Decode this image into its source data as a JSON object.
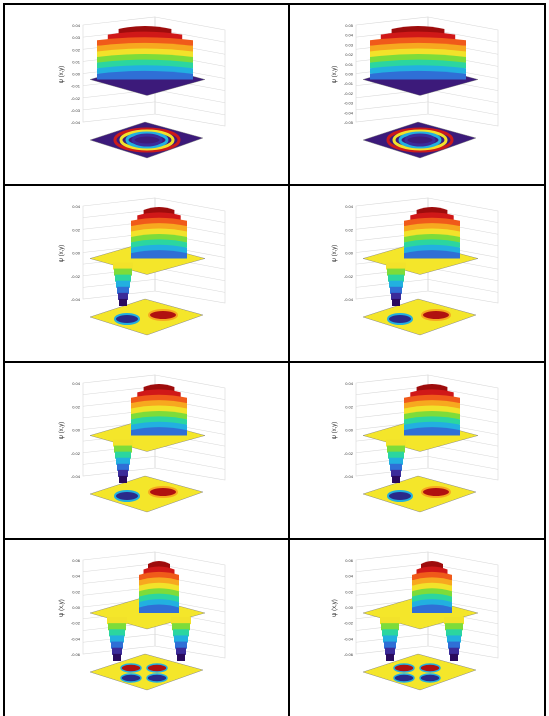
{
  "panels": [
    {
      "id": "p1",
      "ylabel": "ψ (x,y)",
      "ticks": [
        "0.04",
        "0.03",
        "0.02",
        "0.01",
        "0.00",
        "-0.01",
        "-0.02",
        "-0.03",
        "-0.04"
      ],
      "style": "ring",
      "colorset": "violet"
    },
    {
      "id": "p2",
      "ylabel": "ψ (x,y)",
      "ticks": [
        "0.05",
        "0.04",
        "0.03",
        "0.02",
        "0.01",
        "0.00",
        "-0.01",
        "-0.02",
        "-0.03",
        "-0.04",
        "-0.05"
      ],
      "style": "ring",
      "colorset": "violet"
    },
    {
      "id": "p3",
      "ylabel": "ψ (x,y)",
      "ticks": [
        "0.04",
        "0.02",
        "0.00",
        "-0.02",
        "-0.04"
      ],
      "style": "dipole",
      "colorset": "yellow"
    },
    {
      "id": "p4",
      "ylabel": "ψ (x,y)",
      "ticks": [
        "0.04",
        "0.02",
        "0.00",
        "-0.02",
        "-0.04"
      ],
      "style": "dipole",
      "colorset": "yellow"
    },
    {
      "id": "p5",
      "ylabel": "ψ (x,y)",
      "ticks": [
        "0.04",
        "0.02",
        "0.00",
        "-0.02",
        "-0.04"
      ],
      "style": "dipole2",
      "colorset": "yellow"
    },
    {
      "id": "p6",
      "ylabel": "ψ (x,y)",
      "ticks": [
        "0.04",
        "0.02",
        "0.00",
        "-0.02",
        "-0.04"
      ],
      "style": "dipole2",
      "colorset": "yellow"
    },
    {
      "id": "p7",
      "ylabel": "ψ (x,y)",
      "ticks": [
        "0.06",
        "0.04",
        "0.02",
        "0.00",
        "-0.02",
        "-0.04",
        "-0.06"
      ],
      "style": "quad",
      "colorset": "yellow"
    },
    {
      "id": "p8",
      "ylabel": "ψ (x,y)",
      "ticks": [
        "0.06",
        "0.04",
        "0.02",
        "0.00",
        "-0.02",
        "-0.04",
        "-0.06"
      ],
      "style": "quad",
      "colorset": "yellow"
    }
  ]
}
